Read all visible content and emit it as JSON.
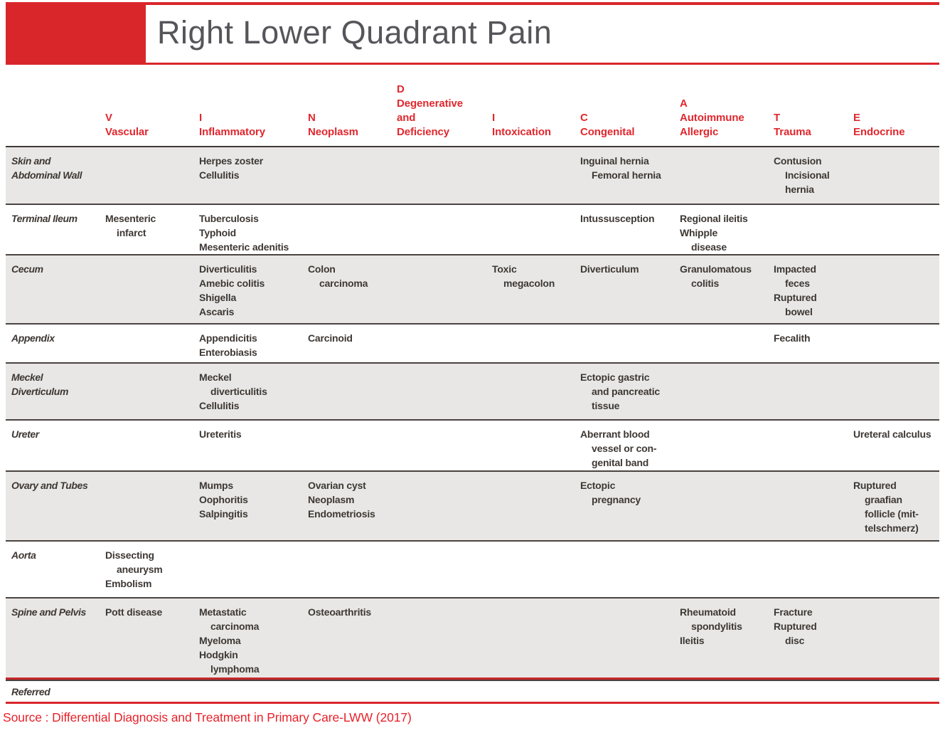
{
  "title": "Right Lower Quadrant Pain",
  "source": "Source : Differential Diagnosis and Treatment in Primary Care-LWW (2017)",
  "colors": {
    "accent_red": "#d9262b",
    "header_text_red": "#e0272e",
    "source_red": "#e8222a",
    "row_shade_gray": "#e8e7e5",
    "body_text": "#3e3834",
    "title_text": "#55555a",
    "rule_dark": "#4a4441"
  },
  "table": {
    "columns": [
      {
        "key": "vascular",
        "lines": [
          "V",
          "Vascular"
        ]
      },
      {
        "key": "inflammatory",
        "lines": [
          "I",
          "Inflammatory"
        ]
      },
      {
        "key": "neoplasm",
        "lines": [
          "N",
          "Neoplasm"
        ]
      },
      {
        "key": "degenerative",
        "lines": [
          "D",
          "Degenerative",
          "and",
          "Deficiency"
        ]
      },
      {
        "key": "intoxication",
        "lines": [
          "I",
          "Intoxication"
        ]
      },
      {
        "key": "congenital",
        "lines": [
          "C",
          "Congenital"
        ]
      },
      {
        "key": "autoimmune",
        "lines": [
          "A",
          "Autoimmune",
          "Allergic"
        ]
      },
      {
        "key": "trauma",
        "lines": [
          "T",
          "Trauma"
        ]
      },
      {
        "key": "endocrine",
        "lines": [
          "E",
          "Endocrine"
        ]
      }
    ],
    "rows": [
      {
        "key": "skin-and-abdominal-wall",
        "label": [
          "Skin and",
          "Abdominal Wall"
        ],
        "cells": [
          [],
          [
            "Herpes zoster",
            "Cellulitis"
          ],
          [],
          [],
          [],
          [
            "Inguinal hernia",
            ">Femoral hernia"
          ],
          [],
          [
            "Contusion",
            ">Incisional",
            ">hernia"
          ],
          []
        ]
      },
      {
        "key": "terminal-ileum",
        "label": [
          "Terminal Ileum"
        ],
        "cells": [
          [
            "Mesenteric",
            ">infarct"
          ],
          [
            "Tuberculosis",
            "Typhoid",
            "Mesenteric adenitis"
          ],
          [],
          [],
          [],
          [
            "Intussusception"
          ],
          [
            "Regional ileitis",
            "Whipple",
            ">disease"
          ],
          [],
          []
        ]
      },
      {
        "key": "cecum",
        "label": [
          "Cecum"
        ],
        "cells": [
          [],
          [
            "Diverticulitis",
            "Amebic colitis",
            "Shigella",
            "Ascaris"
          ],
          [
            "Colon",
            ">carcinoma"
          ],
          [],
          [
            "Toxic",
            ">megacolon"
          ],
          [
            "Diverticulum"
          ],
          [
            "Granulomatous",
            ">colitis"
          ],
          [
            "Impacted",
            ">feces",
            "Ruptured",
            ">bowel"
          ],
          []
        ]
      },
      {
        "key": "appendix",
        "label": [
          "Appendix"
        ],
        "cells": [
          [],
          [
            "Appendicitis",
            "Enterobiasis"
          ],
          [
            "Carcinoid"
          ],
          [],
          [],
          [],
          [],
          [
            "Fecalith"
          ],
          []
        ]
      },
      {
        "key": "meckel-diverticulum",
        "label": [
          "Meckel",
          "Diverticulum"
        ],
        "cells": [
          [],
          [
            "Meckel",
            ">diverticulitis",
            "Cellulitis"
          ],
          [],
          [],
          [],
          [
            "Ectopic gastric",
            ">and pancreatic",
            ">tissue"
          ],
          [],
          [],
          []
        ]
      },
      {
        "key": "ureter",
        "label": [
          "Ureter"
        ],
        "cells": [
          [],
          [
            "Ureteritis"
          ],
          [],
          [],
          [],
          [
            "Aberrant blood",
            ">vessel or con-",
            ">genital band"
          ],
          [],
          [],
          [
            "Ureteral calculus"
          ]
        ]
      },
      {
        "key": "ovary-and-tubes",
        "label": [
          "Ovary and Tubes"
        ],
        "cells": [
          [],
          [
            "Mumps",
            "Oophoritis",
            "Salpingitis"
          ],
          [
            "Ovarian cyst",
            "Neoplasm",
            "Endometriosis"
          ],
          [],
          [],
          [
            "Ectopic",
            ">pregnancy"
          ],
          [],
          [],
          [
            "Ruptured",
            ">graafian",
            ">follicle (mit-",
            ">telschmerz)"
          ]
        ]
      },
      {
        "key": "aorta",
        "label": [
          "Aorta"
        ],
        "cells": [
          [
            "Dissecting",
            ">aneurysm",
            "Embolism"
          ],
          [],
          [],
          [],
          [],
          [],
          [],
          [],
          []
        ]
      },
      {
        "key": "spine-and-pelvis",
        "label": [
          "Spine and Pelvis"
        ],
        "cells": [
          [
            "Pott disease"
          ],
          [
            "Metastatic",
            ">carcinoma",
            "Myeloma",
            "Hodgkin",
            ">lymphoma"
          ],
          [
            "Osteoarthritis"
          ],
          [],
          [],
          [],
          [
            "Rheumatoid",
            ">spondylitis",
            "Ileitis"
          ],
          [
            "Fracture",
            "Ruptured",
            ">disc"
          ],
          []
        ]
      },
      {
        "key": "referred",
        "label": [
          "Referred"
        ],
        "cells": [
          [],
          [],
          [],
          [],
          [],
          [],
          [],
          [],
          []
        ]
      }
    ]
  }
}
